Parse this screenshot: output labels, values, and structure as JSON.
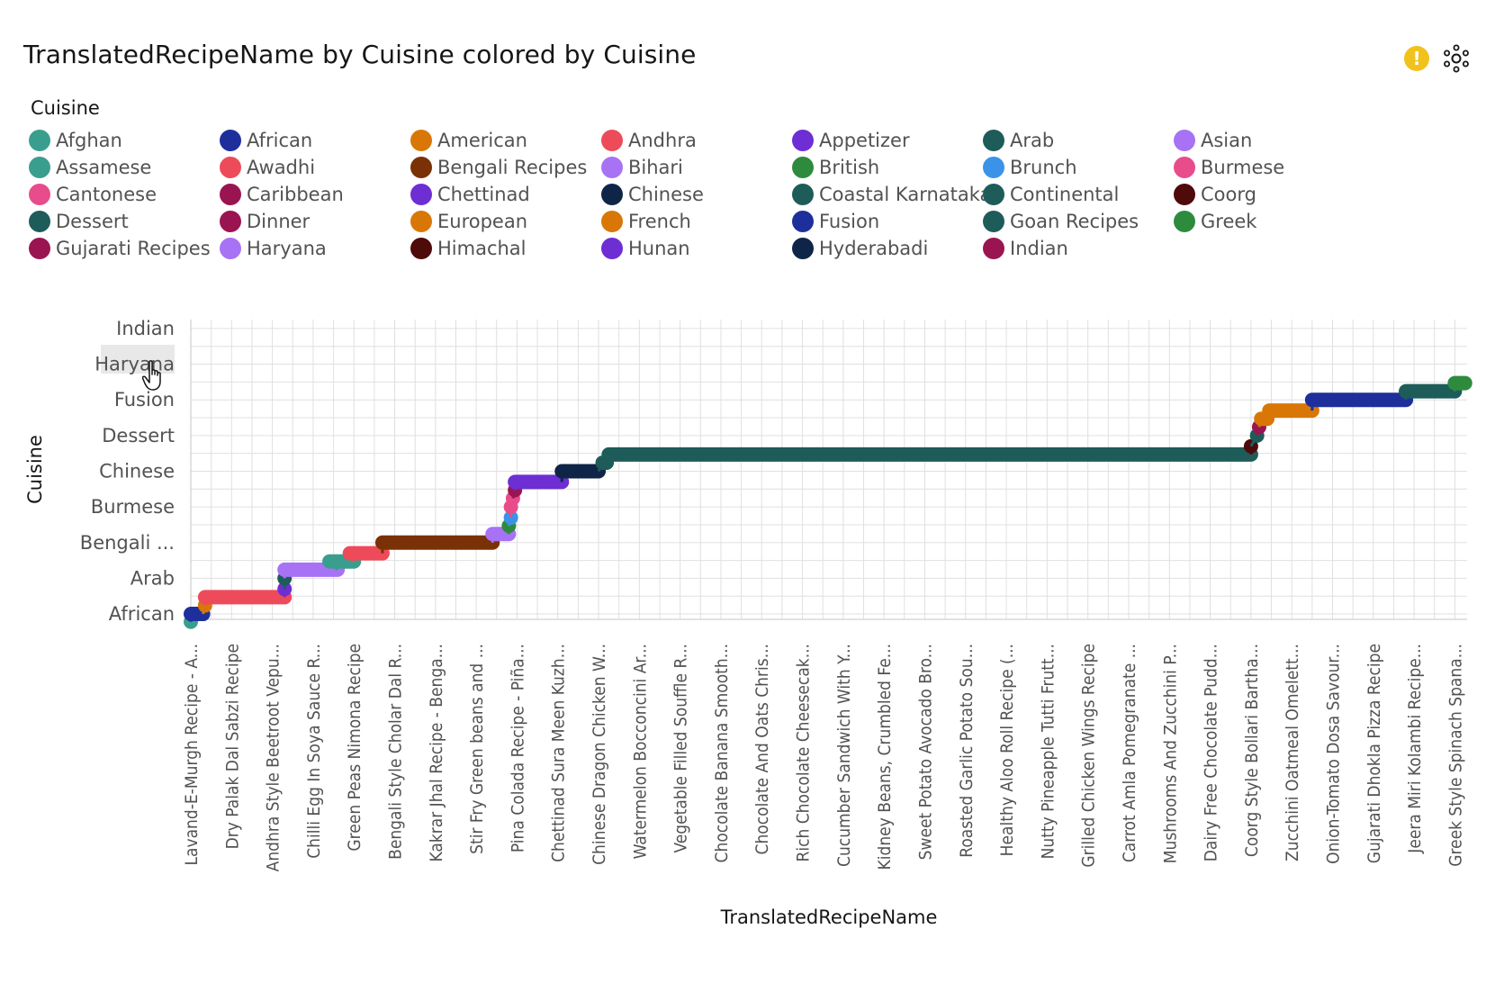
{
  "title": "TranslatedRecipeName by Cuisine colored by Cuisine",
  "legend_title": "Cuisine",
  "icons": {
    "warning": "warning-icon",
    "settings": "settings-gear-icon"
  },
  "legend": [
    {
      "label": "Afghan",
      "color": "#3a9e8f"
    },
    {
      "label": "African",
      "color": "#1e2f9c"
    },
    {
      "label": "American",
      "color": "#d97706"
    },
    {
      "label": "Andhra",
      "color": "#ee4b5a"
    },
    {
      "label": "Appetizer",
      "color": "#6d2ed3"
    },
    {
      "label": "Arab",
      "color": "#1e5c5a"
    },
    {
      "label": "Asian",
      "color": "#a872f5"
    },
    {
      "label": "Assamese",
      "color": "#3a9e8f"
    },
    {
      "label": "Awadhi",
      "color": "#ee4b5a"
    },
    {
      "label": "Bengali Recipes",
      "color": "#7a3106"
    },
    {
      "label": "Bihari",
      "color": "#a872f5"
    },
    {
      "label": "British",
      "color": "#2e8b3e"
    },
    {
      "label": "Brunch",
      "color": "#3a93e8"
    },
    {
      "label": "Burmese",
      "color": "#e84c8b"
    },
    {
      "label": "Cantonese",
      "color": "#e84c8b"
    },
    {
      "label": "Caribbean",
      "color": "#9b1452"
    },
    {
      "label": "Chettinad",
      "color": "#6d2ed3"
    },
    {
      "label": "Chinese",
      "color": "#0f2548"
    },
    {
      "label": "Coastal Karnataka",
      "color": "#1e5c5a"
    },
    {
      "label": "Continental",
      "color": "#1e5c5a"
    },
    {
      "label": "Coorg",
      "color": "#4f0a0a"
    },
    {
      "label": "Dessert",
      "color": "#1e5c5a"
    },
    {
      "label": "Dinner",
      "color": "#9b1452"
    },
    {
      "label": "European",
      "color": "#d97706"
    },
    {
      "label": "French",
      "color": "#d97706"
    },
    {
      "label": "Fusion",
      "color": "#1e2f9c"
    },
    {
      "label": "Goan Recipes",
      "color": "#1e5c5a"
    },
    {
      "label": "Greek",
      "color": "#2e8b3e"
    },
    {
      "label": "Gujarati Recipes",
      "color": "#9b1452"
    },
    {
      "label": "Haryana",
      "color": "#a872f5"
    },
    {
      "label": "Himachal",
      "color": "#4f0a0a"
    },
    {
      "label": "Hunan",
      "color": "#6d2ed3"
    },
    {
      "label": "Hyderabadi",
      "color": "#0f2548"
    },
    {
      "label": "Indian",
      "color": "#9b1452"
    }
  ],
  "chart_data": {
    "type": "line",
    "xlabel": "TranslatedRecipeName",
    "ylabel": "Cuisine",
    "y_categories": [
      "African",
      "Arab",
      "Bengali ...",
      "Burmese",
      "Chinese",
      "Dessert",
      "Fusion",
      "Haryana",
      "Indian"
    ],
    "x_tick_labels": [
      "Lavand-E-Murgh Recipe - A...",
      "Dry Palak Dal Sabzi Recipe",
      "Andhra Style Beetroot Vepu...",
      "Chilli Egg In Soya Sauce R...",
      "Green Peas Nimona Recipe",
      "Bengali Style Cholar Dal R...",
      "Kakrar Jhal Recipe - Benga...",
      "Stir Fry Green beans and ...",
      "Pina Colada Recipe - Piña...",
      "Chettinad Sura Meen Kuzh...",
      "Chinese Dragon Chicken W...",
      "Watermelon Bocconcini Ar...",
      "Vegetable Filled Souffle R...",
      "Chocolate Banana Smooth...",
      "Chocolate And Oats Chris...",
      "Rich Chocolate Cheesecak...",
      "Cucumber Sandwich With Y...",
      "Kidney Beans, Crumbled Fe...",
      "Sweet Potato Avocado Bro...",
      "Roasted Garlic Potato Sou...",
      "Healthy Aloo Roll Recipe (...",
      "Nutty Pineapple Tutti Frutt...",
      "Grilled Chicken Wings Recipe",
      "Carrot Amla Pomegranate ...",
      "Mushrooms And Zucchini P...",
      "Dairy Free Chocolate Pudd...",
      "Coorg Style Bollari Bartha...",
      "Zucchini Oatmeal Omelett...",
      "Onion-Tomato Dosa Savour...",
      "Gujarati Dhokla Pizza Recipe",
      "Jeera Miri Kolambi Recipe...",
      "Greek Style Spinach Spana..."
    ],
    "x_range": [
      0,
      31.3
    ],
    "y_range": [
      -0.15,
      8.25
    ],
    "grid": true,
    "segments": [
      {
        "cuisine": "Afghan",
        "x0": 0.0,
        "x1": 0.0,
        "y": -0.22,
        "color": "#3a9e8f"
      },
      {
        "cuisine": "African",
        "x0": 0.0,
        "x1": 0.3,
        "y": 0.0,
        "color": "#1e2f9c"
      },
      {
        "cuisine": "American",
        "x0": 0.35,
        "x1": 0.35,
        "y": 0.24,
        "color": "#d97706"
      },
      {
        "cuisine": "Andhra",
        "x0": 0.35,
        "x1": 2.3,
        "y": 0.47,
        "color": "#ee4b5a"
      },
      {
        "cuisine": "Appetizer",
        "x0": 2.3,
        "x1": 2.3,
        "y": 0.7,
        "color": "#6d2ed3"
      },
      {
        "cuisine": "Arab",
        "x0": 2.3,
        "x1": 2.3,
        "y": 1.0,
        "color": "#1e5c5a"
      },
      {
        "cuisine": "Asian",
        "x0": 2.3,
        "x1": 3.6,
        "y": 1.24,
        "color": "#a872f5"
      },
      {
        "cuisine": "Assamese",
        "x0": 3.4,
        "x1": 4.0,
        "y": 1.47,
        "color": "#3a9e8f"
      },
      {
        "cuisine": "Awadhi",
        "x0": 3.9,
        "x1": 4.7,
        "y": 1.7,
        "color": "#ee4b5a"
      },
      {
        "cuisine": "Bengali Recipes",
        "x0": 4.7,
        "x1": 7.4,
        "y": 2.0,
        "color": "#7a3106"
      },
      {
        "cuisine": "Bihari",
        "x0": 7.4,
        "x1": 7.8,
        "y": 2.24,
        "color": "#a872f5"
      },
      {
        "cuisine": "British",
        "x0": 7.8,
        "x1": 7.8,
        "y": 2.47,
        "color": "#2e8b3e"
      },
      {
        "cuisine": "Brunch",
        "x0": 7.85,
        "x1": 7.85,
        "y": 2.7,
        "color": "#3a93e8"
      },
      {
        "cuisine": "Burmese",
        "x0": 7.85,
        "x1": 7.85,
        "y": 3.0,
        "color": "#e84c8b"
      },
      {
        "cuisine": "Cantonese",
        "x0": 7.9,
        "x1": 7.9,
        "y": 3.24,
        "color": "#e84c8b"
      },
      {
        "cuisine": "Caribbean",
        "x0": 7.95,
        "x1": 7.95,
        "y": 3.47,
        "color": "#9b1452"
      },
      {
        "cuisine": "Chettinad",
        "x0": 7.95,
        "x1": 9.1,
        "y": 3.7,
        "color": "#6d2ed3"
      },
      {
        "cuisine": "Chinese",
        "x0": 9.1,
        "x1": 10.0,
        "y": 4.0,
        "color": "#0f2548"
      },
      {
        "cuisine": "Coastal Karnataka",
        "x0": 10.1,
        "x1": 10.2,
        "y": 4.24,
        "color": "#1e5c5a"
      },
      {
        "cuisine": "Continental",
        "x0": 10.25,
        "x1": 26.0,
        "y": 4.47,
        "color": "#1e5c5a"
      },
      {
        "cuisine": "Coorg",
        "x0": 26.0,
        "x1": 26.0,
        "y": 4.7,
        "color": "#4f0a0a"
      },
      {
        "cuisine": "Dessert",
        "x0": 26.15,
        "x1": 26.15,
        "y": 5.0,
        "color": "#1e5c5a"
      },
      {
        "cuisine": "Dinner",
        "x0": 26.2,
        "x1": 26.2,
        "y": 5.24,
        "color": "#9b1452"
      },
      {
        "cuisine": "European",
        "x0": 26.25,
        "x1": 26.4,
        "y": 5.47,
        "color": "#d97706"
      },
      {
        "cuisine": "French",
        "x0": 26.45,
        "x1": 27.5,
        "y": 5.7,
        "color": "#d97706"
      },
      {
        "cuisine": "Fusion",
        "x0": 27.5,
        "x1": 29.8,
        "y": 6.0,
        "color": "#1e2f9c"
      },
      {
        "cuisine": "Goan Recipes",
        "x0": 29.8,
        "x1": 31.0,
        "y": 6.24,
        "color": "#1e5c5a"
      },
      {
        "cuisine": "Greek",
        "x0": 31.0,
        "x1": 31.25,
        "y": 6.47,
        "color": "#2e8b3e"
      }
    ]
  }
}
